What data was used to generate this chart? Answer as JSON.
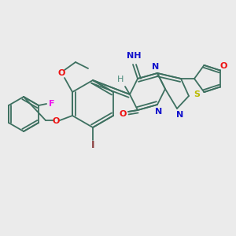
{
  "background_color": "#ebebeb",
  "bond_color": "#3d7060",
  "atom_colors": {
    "O": "#ee1111",
    "N": "#1111cc",
    "S": "#bbbb00",
    "F": "#ee11ee",
    "I": "#8b4040",
    "H": "#4a8a7a"
  },
  "figsize": [
    3.0,
    3.0
  ],
  "dpi": 100
}
